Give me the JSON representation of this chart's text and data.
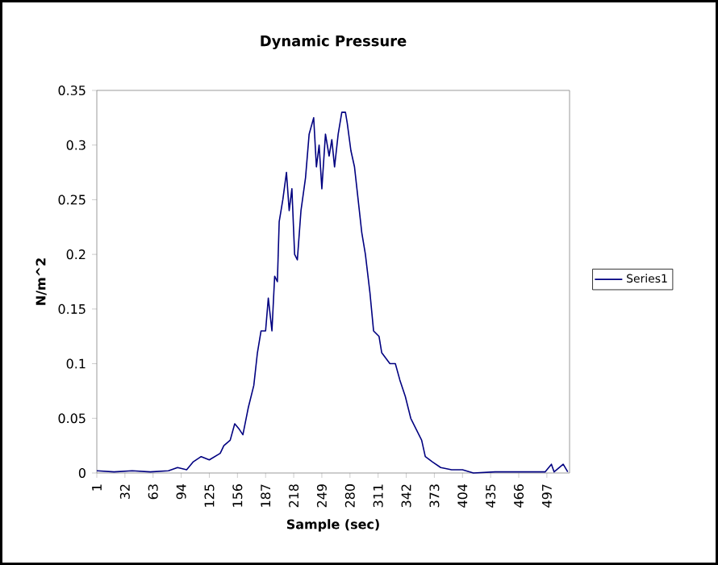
{
  "chart_data": {
    "type": "line",
    "title": "Dynamic Pressure",
    "xlabel": "Sample (sec)",
    "ylabel": "N/m^2",
    "xlim": [
      1,
      522
    ],
    "xticks": [
      1,
      32,
      63,
      94,
      125,
      156,
      187,
      218,
      249,
      280,
      311,
      342,
      373,
      404,
      435,
      466,
      497
    ],
    "ylim": [
      0,
      0.35
    ],
    "yticks": [
      0,
      0.05,
      0.1,
      0.15,
      0.2,
      0.25,
      0.3,
      0.35
    ],
    "legend": "right",
    "marker": "none",
    "line_style": "solid",
    "series": [
      {
        "name": "Series1",
        "color": "#000080",
        "x": [
          1,
          20,
          40,
          60,
          80,
          90,
          100,
          107,
          116,
          125,
          137,
          141,
          148,
          153,
          158,
          162,
          168,
          174,
          178,
          182,
          187,
          190,
          194,
          197,
          200,
          202,
          206,
          210,
          213,
          216,
          219,
          222,
          226,
          231,
          235,
          240,
          243,
          246,
          249,
          253,
          257,
          260,
          263,
          267,
          271,
          275,
          277,
          281,
          285,
          289,
          293,
          297,
          302,
          306,
          312,
          315,
          324,
          330,
          335,
          341,
          347,
          353,
          359,
          363,
          371,
          380,
          392,
          404,
          416,
          440,
          470,
          495,
          502,
          505,
          515,
          520
        ],
        "values": [
          0.002,
          0.001,
          0.002,
          0.001,
          0.002,
          0.005,
          0.003,
          0.01,
          0.015,
          0.012,
          0.018,
          0.025,
          0.03,
          0.045,
          0.04,
          0.035,
          0.06,
          0.08,
          0.11,
          0.13,
          0.13,
          0.16,
          0.13,
          0.18,
          0.175,
          0.23,
          0.25,
          0.275,
          0.24,
          0.26,
          0.2,
          0.195,
          0.24,
          0.27,
          0.31,
          0.325,
          0.28,
          0.3,
          0.26,
          0.31,
          0.29,
          0.305,
          0.28,
          0.31,
          0.33,
          0.33,
          0.32,
          0.295,
          0.28,
          0.25,
          0.22,
          0.2,
          0.165,
          0.13,
          0.125,
          0.11,
          0.1,
          0.1,
          0.085,
          0.07,
          0.05,
          0.04,
          0.03,
          0.015,
          0.01,
          0.005,
          0.003,
          0.003,
          0,
          0.001,
          0.001,
          0.001,
          0.008,
          0.001,
          0.008,
          0.001
        ]
      }
    ]
  }
}
